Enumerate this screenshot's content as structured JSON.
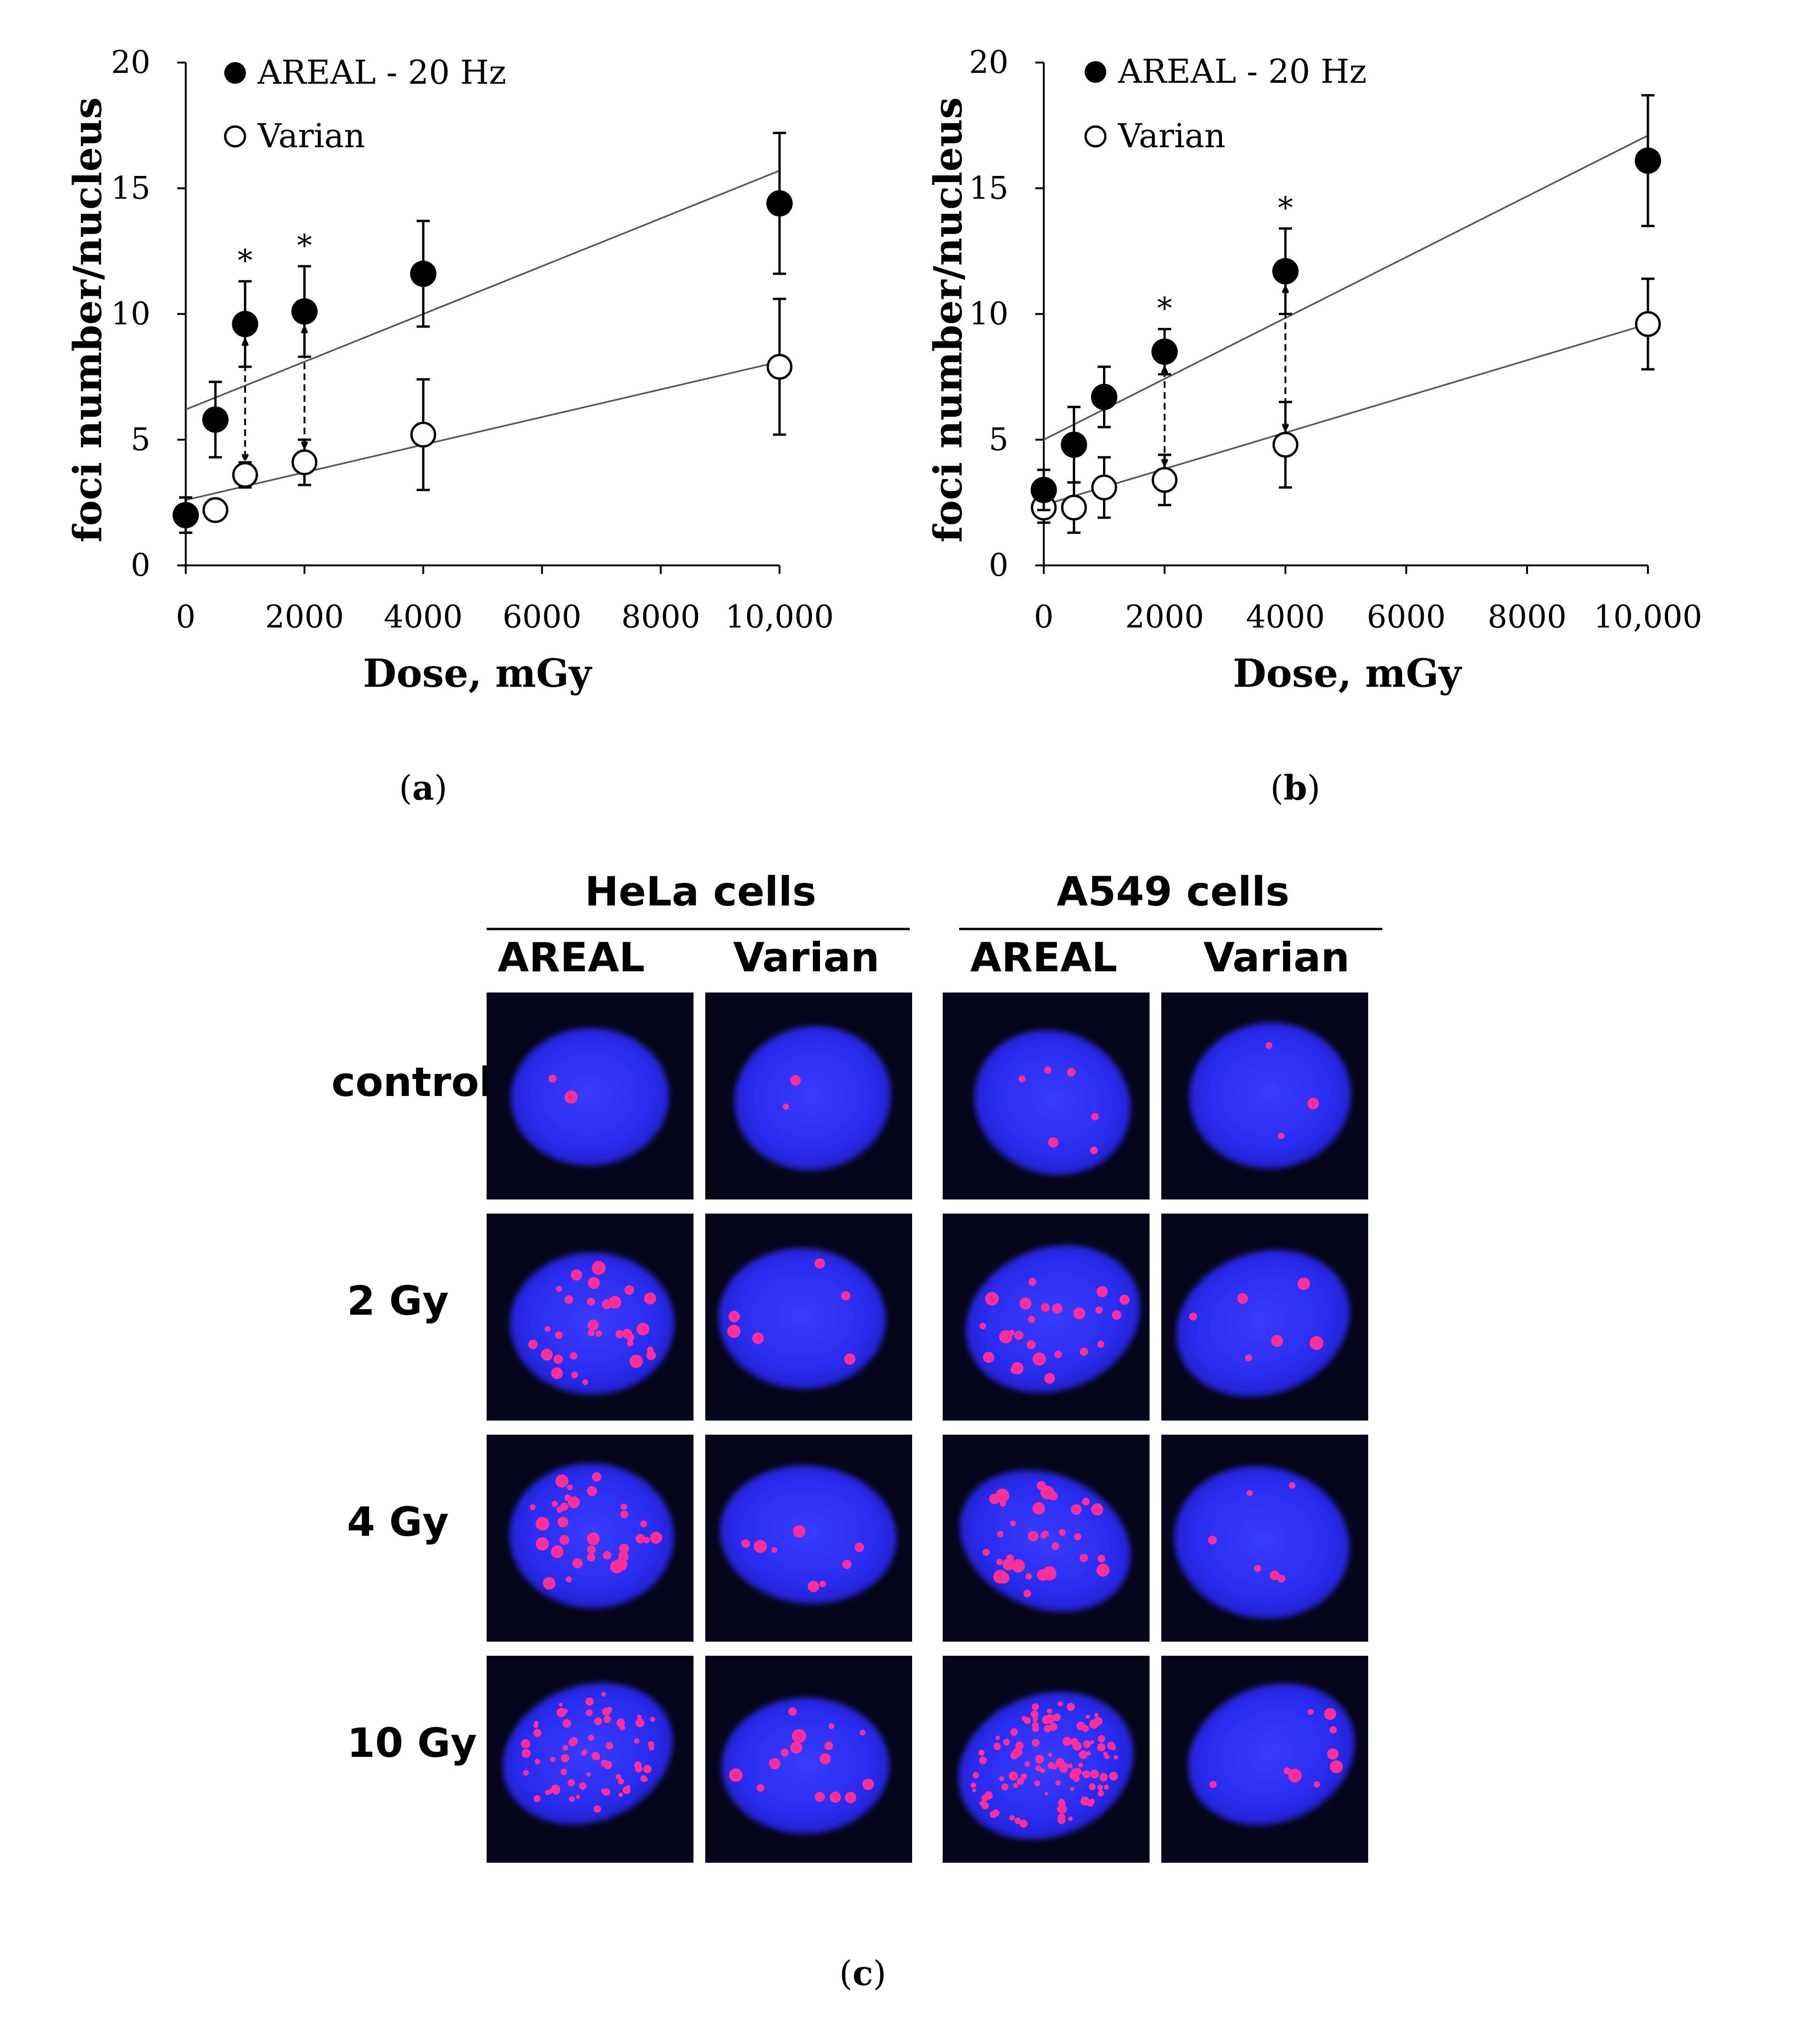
{
  "chart_data": [
    {
      "type": "scatter",
      "panel_label": "a",
      "xlabel": "Dose, mGy",
      "ylabel": "foci number/nucleus",
      "xlim": [
        0,
        10000
      ],
      "ylim": [
        0,
        20
      ],
      "xticks": [
        "0",
        "2000",
        "4000",
        "6000",
        "8000",
        "10,000"
      ],
      "yticks": [
        "0",
        "5",
        "10",
        "15",
        "20"
      ],
      "legend": [
        "AREAL - 20 Hz",
        "Varian"
      ],
      "significance_marker": "*",
      "significant_doses": [
        1000,
        2000
      ],
      "series": [
        {
          "name": "AREAL - 20 Hz",
          "marker": "filled-circle",
          "x": [
            0,
            500,
            1000,
            2000,
            4000,
            10000
          ],
          "y": [
            2.0,
            5.8,
            9.6,
            10.1,
            11.6,
            14.4
          ],
          "err": [
            0.7,
            1.5,
            1.7,
            1.8,
            2.1,
            2.8
          ],
          "trend": [
            6.2,
            15.7
          ]
        },
        {
          "name": "Varian",
          "marker": "open-circle",
          "x": [
            0,
            500,
            1000,
            2000,
            4000,
            10000
          ],
          "y": [
            2.0,
            2.2,
            3.6,
            4.1,
            5.2,
            7.9
          ],
          "err": [
            0.7,
            0.4,
            0.5,
            0.9,
            2.2,
            2.7
          ],
          "trend": [
            2.6,
            8.1
          ]
        }
      ]
    },
    {
      "type": "scatter",
      "panel_label": "b",
      "xlabel": "Dose, mGy",
      "ylabel": "foci number/nucleus",
      "xlim": [
        0,
        10000
      ],
      "ylim": [
        0,
        20
      ],
      "xticks": [
        "0",
        "2000",
        "4000",
        "6000",
        "8000",
        "10,000"
      ],
      "yticks": [
        "0",
        "5",
        "10",
        "15",
        "20"
      ],
      "legend": [
        "AREAL - 20 Hz",
        "Varian"
      ],
      "significance_marker": "*",
      "significant_doses": [
        2000,
        4000
      ],
      "series": [
        {
          "name": "AREAL - 20 Hz",
          "marker": "filled-circle",
          "x": [
            0,
            500,
            1000,
            2000,
            4000,
            10000
          ],
          "y": [
            3.0,
            4.8,
            6.7,
            8.5,
            11.7,
            16.1
          ],
          "err": [
            0.8,
            1.5,
            1.2,
            0.9,
            1.7,
            2.6
          ],
          "trend": [
            5.0,
            17.1
          ]
        },
        {
          "name": "Varian",
          "marker": "open-circle",
          "x": [
            0,
            500,
            1000,
            2000,
            4000,
            10000
          ],
          "y": [
            2.3,
            2.3,
            3.1,
            3.4,
            4.8,
            9.6
          ],
          "err": [
            0.6,
            1.0,
            1.2,
            1.0,
            1.7,
            1.8
          ],
          "trend": [
            2.4,
            9.6
          ]
        }
      ]
    }
  ],
  "micrographs": {
    "panel_label": "c",
    "groups": [
      "HeLa cells",
      "A549 cells"
    ],
    "columns": [
      "AREAL",
      "Varian",
      "AREAL",
      "Varian"
    ],
    "rows": [
      "control",
      "2 Gy",
      "4 Gy",
      "10 Gy"
    ],
    "foci_counts": [
      [
        2,
        2,
        6,
        3
      ],
      [
        30,
        6,
        24,
        6
      ],
      [
        34,
        9,
        32,
        6
      ],
      [
        65,
        16,
        110,
        9
      ]
    ],
    "colors": {
      "nucleus": "#2c2df0",
      "focus": "#ff2f9a",
      "background": "#06061a"
    }
  }
}
